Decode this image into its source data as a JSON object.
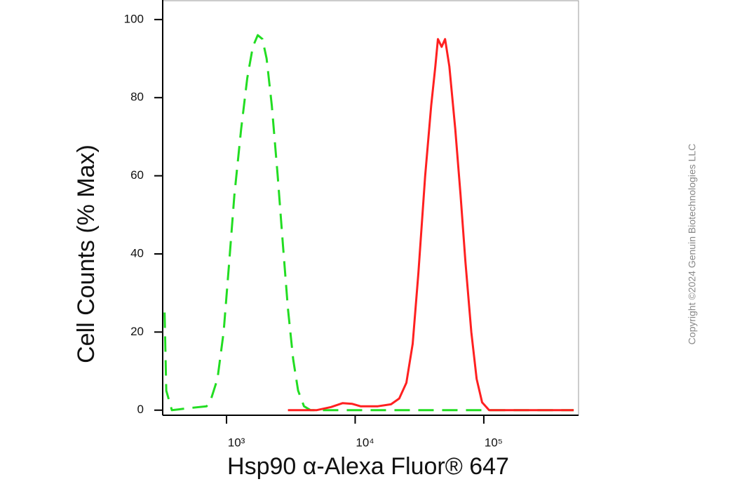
{
  "chart_data": {
    "type": "line",
    "x_label": "Hsp90 α-Alexa Fluor® 647",
    "y_label": "Cell Counts (% Max)",
    "copyright": "Copyright ©2024 Genuin Biotechnologies LLC",
    "xscale": "log",
    "xlim": [
      319,
      545000
    ],
    "ylim": [
      -1.3,
      105
    ],
    "xticks": [
      {
        "value": 1000,
        "label": "10³"
      },
      {
        "value": 10000,
        "label": "10⁴"
      },
      {
        "value": 100000,
        "label": "10⁵"
      }
    ],
    "yticks": [
      0,
      20,
      40,
      60,
      80,
      100
    ],
    "series": [
      {
        "color": "#22dd22",
        "dash": true,
        "x": [
          330,
          340,
          376,
          500,
          700,
          760,
          850,
          950,
          1050,
          1150,
          1300,
          1450,
          1600,
          1750,
          1900,
          2050,
          2250,
          2500,
          2750,
          3000,
          3300,
          3600,
          4000,
          4500,
          10000,
          100000,
          500000
        ],
        "values": [
          25,
          5,
          0,
          0.5,
          1,
          3,
          8,
          20,
          38,
          55,
          72,
          85,
          93,
          96,
          95,
          90,
          78,
          60,
          42,
          26,
          13,
          5,
          1,
          0,
          0,
          0,
          0
        ]
      },
      {
        "color": "#ff2020",
        "dash": false,
        "x": [
          3000,
          5000,
          6500,
          8000,
          9500,
          11000,
          15000,
          19000,
          22000,
          25000,
          28000,
          31000,
          35000,
          39000,
          42000,
          44000,
          47000,
          50000,
          54000,
          60000,
          66000,
          72000,
          80000,
          88000,
          97000,
          110000,
          200000,
          500000
        ],
        "values": [
          0,
          0,
          0.8,
          1.8,
          1.6,
          1,
          1,
          1.5,
          3,
          7,
          17,
          35,
          60,
          78,
          88,
          95,
          93,
          95,
          88,
          72,
          55,
          38,
          20,
          8,
          2,
          0,
          0,
          0
        ]
      }
    ]
  }
}
